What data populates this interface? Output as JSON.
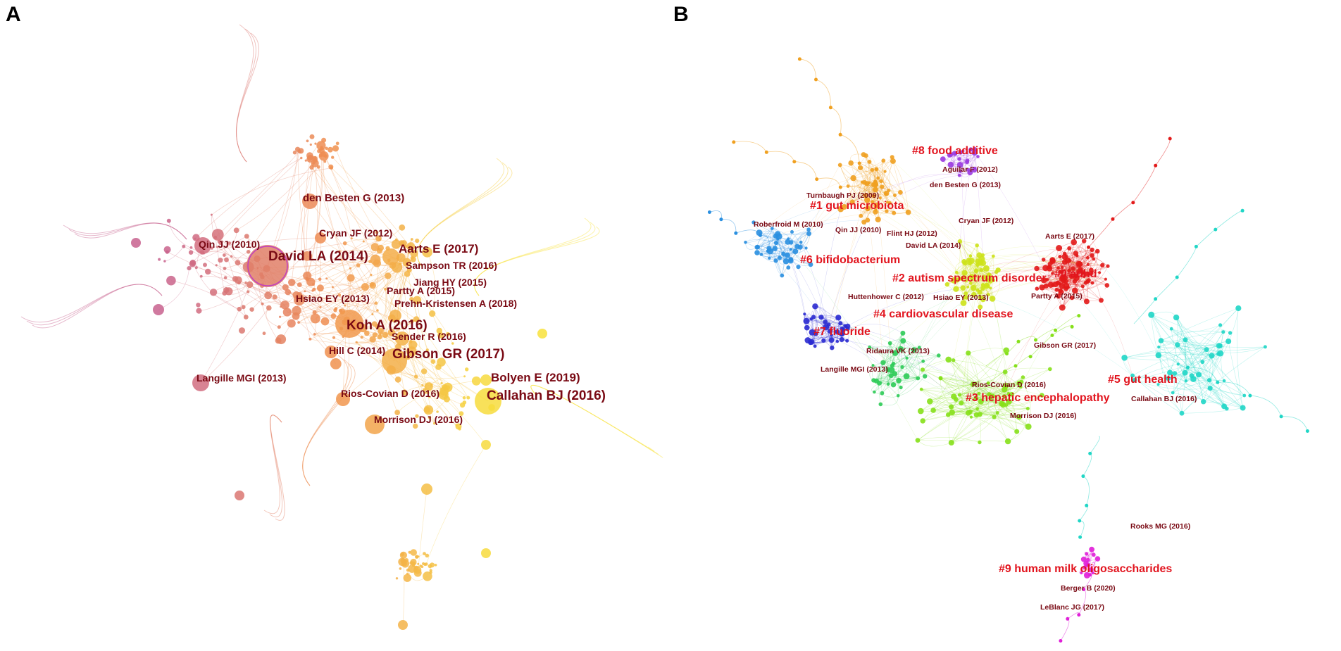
{
  "panels": {
    "a": {
      "letter": "A",
      "labels": [
        {
          "text": "den Besten G (2013)",
          "weight": "m"
        },
        {
          "text": "Qin JJ (2010)",
          "weight": "s"
        },
        {
          "text": "Cryan JF (2012)",
          "weight": "s"
        },
        {
          "text": "David LA (2014)",
          "weight": "xl"
        },
        {
          "text": "Aarts E (2017)",
          "weight": "l"
        },
        {
          "text": "Sampson TR (2016)",
          "weight": "s"
        },
        {
          "text": "Jiang HY (2015)",
          "weight": "s"
        },
        {
          "text": "Partty A (2015)",
          "weight": "s"
        },
        {
          "text": "Hsiao EY (2013)",
          "weight": "s"
        },
        {
          "text": "Prehn-Kristensen A (2018)",
          "weight": "s"
        },
        {
          "text": "Koh A (2016)",
          "weight": "xl"
        },
        {
          "text": "Sender R (2016)",
          "weight": "s"
        },
        {
          "text": "Hill C (2014)",
          "weight": "s"
        },
        {
          "text": "Gibson GR (2017)",
          "weight": "xl"
        },
        {
          "text": "Langille MGI (2013)",
          "weight": "s"
        },
        {
          "text": "Bolyen E (2019)",
          "weight": "l"
        },
        {
          "text": "Rios-Covian D (2016)",
          "weight": "s"
        },
        {
          "text": "Callahan BJ (2016)",
          "weight": "xl"
        },
        {
          "text": "Morrison DJ (2016)",
          "weight": "s"
        }
      ]
    },
    "b": {
      "letter": "B",
      "clusters": [
        {
          "text": "#8 food additive",
          "color": "#e2151f"
        },
        {
          "text": "#1 gut microbiota",
          "color": "#e2151f"
        },
        {
          "text": "#6 bifidobacterium",
          "color": "#e2151f"
        },
        {
          "text": "#2 autism spectrum disorder",
          "color": "#e2151f"
        },
        {
          "text": "#0 adhd",
          "color": "#e2151f"
        },
        {
          "text": "#4 cardiovascular disease",
          "color": "#e2151f"
        },
        {
          "text": "#7 fluoride",
          "color": "#e2151f"
        },
        {
          "text": "#5 gut health",
          "color": "#e2151f"
        },
        {
          "text": "#3 hepatic encephalopathy",
          "color": "#e2151f"
        },
        {
          "text": "#9 human milk oligosaccharides",
          "color": "#e2151f"
        }
      ],
      "labels": [
        "Aguilar F (2012)",
        "den Besten G (2013)",
        "Turnbaugh PJ (2009)",
        "Cryan JF (2012)",
        "Roberfroid M (2010)",
        "Qin JJ (2010)",
        "Flint HJ (2012)",
        "Aarts E (2017)",
        "David LA (2014)",
        "Huttenhower C (2012)",
        "Hsiao EY (2013)",
        "Partty A (2015)",
        "Ridaura VK (2013)",
        "Gibson GR (2017)",
        "Langille MGI (2013)",
        "Rios-Covian D (2016)",
        "Callahan BJ (2016)",
        "Morrison DJ (2016)",
        "Rooks MG (2016)",
        "Berger B (2020)",
        "LeBlanc JG (2017)"
      ]
    }
  },
  "colors": {
    "a_old": "#c8628e",
    "a_mid": "#f09050",
    "a_new": "#f8e23c",
    "label": "#7a0a14",
    "b_cluster_colors": [
      "#e21a1a",
      "#f0a020",
      "#cde21a",
      "#86e01a",
      "#2ecb56",
      "#20d6c6",
      "#2a8fe0",
      "#2a2ad0",
      "#9a3ae0",
      "#e020d8"
    ]
  }
}
